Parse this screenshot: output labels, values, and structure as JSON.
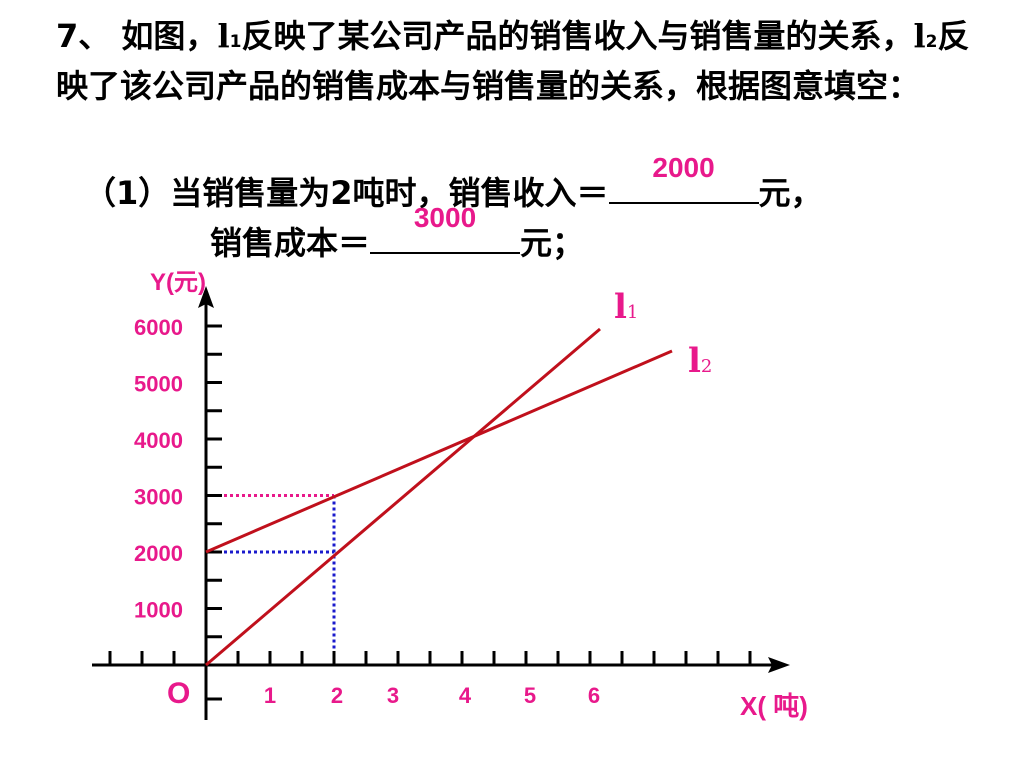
{
  "question": {
    "number": "7、",
    "text_a": " 如图，",
    "l1_letter": "l",
    "l1_sub": "1",
    "text_b": "反映了某公司产品的销售收入与销售量的关系，",
    "l2_letter": "l",
    "l2_sub": "2",
    "text_c": "反映了该公司产品的销售成本与销售量的关系，根据图意填空："
  },
  "part1": {
    "lead": "（1）当销售量为2吨时，销售收入＝",
    "revenue_answer": "2000",
    "tail1": "元，",
    "lead2": "销售成本＝",
    "cost_answer": "3000",
    "tail2": "元；"
  },
  "colors": {
    "line": "#c0101c",
    "label_pink": "#e8198b",
    "guide_pink": "#e8198b",
    "guide_blue": "#1a1acc",
    "axis": "#000000"
  },
  "chart_data": {
    "type": "line",
    "xlabel": "X( 吨)",
    "ylabel": "Y(元)",
    "origin_label": "O",
    "x_ticks": [
      "1",
      "2",
      "3",
      "4",
      "5",
      "6"
    ],
    "y_ticks": [
      "1000",
      "2000",
      "3000",
      "4000",
      "5000",
      "6000"
    ],
    "xlim": [
      0,
      6
    ],
    "ylim": [
      0,
      6000
    ],
    "series": [
      {
        "name": "l1",
        "label_letter": "l",
        "label_sub": "1",
        "x": [
          0,
          6
        ],
        "y": [
          0,
          6000
        ]
      },
      {
        "name": "l2",
        "label_letter": "l",
        "label_sub": "2",
        "x": [
          0,
          6
        ],
        "y": [
          2000,
          5000
        ]
      }
    ],
    "guides": [
      {
        "x": 2,
        "y": 2000,
        "color": "blue"
      },
      {
        "x": 2,
        "y": 3000,
        "color": "pink"
      }
    ]
  }
}
